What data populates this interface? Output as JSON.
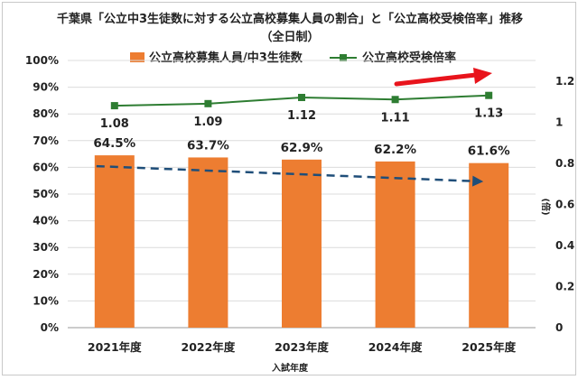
{
  "chart_data": {
    "type": "bar",
    "title": "千葉県「公立中3生徒数に対する公立高校募集人員の割合」と「公立高校受検倍率」推移",
    "subtitle": "（全日制）",
    "xlabel": "入試年度",
    "y2label": "(倍)",
    "categories": [
      "2021年度",
      "2022年度",
      "2023年度",
      "2024年度",
      "2025年度"
    ],
    "series": [
      {
        "name": "公立高校募集人員/中3生徒数",
        "type": "bar",
        "axis": "left",
        "values": [
          64.5,
          63.7,
          62.9,
          62.2,
          61.6
        ],
        "labels": [
          "64.5%",
          "63.7%",
          "62.9%",
          "62.2%",
          "61.6%"
        ],
        "color": "#ed7d31"
      },
      {
        "name": "公立高校受検倍率",
        "type": "line",
        "axis": "right",
        "values": [
          1.08,
          1.09,
          1.12,
          1.11,
          1.13
        ],
        "labels": [
          "1.08",
          "1.09",
          "1.12",
          "1.11",
          "1.13"
        ],
        "color": "#2e7d32"
      }
    ],
    "ylim": [
      0,
      100
    ],
    "y_ticks": [
      "0%",
      "10%",
      "20%",
      "30%",
      "40%",
      "50%",
      "60%",
      "70%",
      "80%",
      "90%",
      "100%"
    ],
    "y2lim": [
      0,
      1.3
    ],
    "y2_ticks": [
      "0",
      "0.2",
      "0.4",
      "0.6",
      "0.8",
      "1",
      "1.2"
    ],
    "trend_color": "#1f4e79",
    "arrow_color": "#e8141c",
    "grid": true,
    "legend": "top"
  }
}
